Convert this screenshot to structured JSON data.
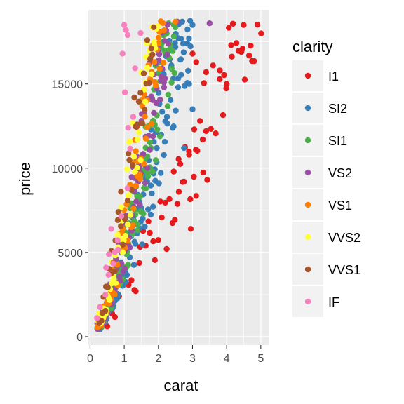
{
  "chart_data": {
    "type": "scatter",
    "title": "",
    "xlabel": "carat",
    "ylabel": "price",
    "xlim": [
      -0.05,
      5.25
    ],
    "ylim": [
      -500,
      19400
    ],
    "x_ticks": [
      0,
      1,
      2,
      3,
      4,
      5
    ],
    "x_tick_labels": [
      "0",
      "1",
      "2",
      "3",
      "4",
      "5"
    ],
    "y_ticks": [
      0,
      5000,
      10000,
      15000
    ],
    "y_tick_labels": [
      "0",
      "5000",
      "10000",
      "15000"
    ],
    "grid": true,
    "legend": {
      "title": "clarity",
      "position": "right",
      "entries": [
        "I1",
        "SI2",
        "SI1",
        "VS2",
        "VS1",
        "VVS2",
        "VVS1",
        "IF"
      ]
    },
    "series": [
      {
        "name": "I1",
        "color": "#e41a1c",
        "ppc": 0.9,
        "dpp": 0.07,
        "x": [
          0.5,
          0.7,
          0.9,
          1.0,
          1.1,
          1.2,
          1.3,
          1.5,
          1.7,
          2.0,
          2.2,
          2.5,
          2.8,
          3.0,
          3.5,
          4.0,
          4.5,
          5.0
        ],
        "y": [
          900,
          1500,
          2300,
          2800,
          3100,
          3500,
          3800,
          4400,
          5000,
          5700,
          6400,
          7600,
          8700,
          9900,
          12200,
          14800,
          18300,
          17900
        ],
        "spread_lo": [
          300,
          400,
          500,
          700,
          900,
          1000,
          1200,
          1400,
          1500,
          1600,
          1800,
          2000,
          2100,
          2300,
          2800,
          3000,
          3000,
          3000
        ],
        "spread_hi": [
          400,
          600,
          800,
          1000,
          1200,
          1400,
          1500,
          1800,
          2200,
          2500,
          2800,
          3000,
          3200,
          3300,
          3500,
          3500,
          3000,
          3000
        ],
        "outliers": [
          {
            "x": 3.0,
            "y": 16800
          },
          {
            "x": 3.11,
            "y": 16300
          },
          {
            "x": 3.4,
            "y": 15700
          },
          {
            "x": 3.6,
            "y": 16100
          },
          {
            "x": 3.8,
            "y": 15800
          },
          {
            "x": 4.0,
            "y": 15000
          },
          {
            "x": 4.13,
            "y": 17300
          },
          {
            "x": 4.5,
            "y": 18500
          },
          {
            "x": 5.01,
            "y": 18000
          },
          {
            "x": 3.22,
            "y": 12800
          },
          {
            "x": 3.05,
            "y": 12300
          },
          {
            "x": 3.4,
            "y": 12200
          },
          {
            "x": 3.3,
            "y": 11700
          },
          {
            "x": 3.1,
            "y": 11100
          },
          {
            "x": 2.9,
            "y": 10800
          },
          {
            "x": 2.95,
            "y": 6400
          },
          {
            "x": 2.75,
            "y": 9200
          },
          {
            "x": 2.6,
            "y": 8600
          },
          {
            "x": 2.45,
            "y": 9800
          }
        ]
      },
      {
        "name": "SI2",
        "color": "#377eb8",
        "ppc": 2.0,
        "dpp": 0.04,
        "x": [
          0.2,
          0.3,
          0.4,
          0.5,
          0.7,
          0.9,
          1.0,
          1.2,
          1.5,
          1.8,
          2.0,
          2.3,
          2.6,
          3.0
        ],
        "y": [
          450,
          600,
          900,
          1300,
          2200,
          3200,
          3900,
          5000,
          7000,
          9500,
          11500,
          14000,
          16500,
          18200
        ],
        "spread_lo": [
          150,
          200,
          250,
          350,
          500,
          700,
          900,
          1300,
          1800,
          2200,
          2500,
          2800,
          3000,
          3000
        ],
        "spread_hi": [
          300,
          400,
          500,
          700,
          1000,
          1200,
          1500,
          2000,
          2600,
          3000,
          3300,
          3500,
          3000,
          2000
        ],
        "outliers": [
          {
            "x": 2.7,
            "y": 18700
          },
          {
            "x": 3.0,
            "y": 18500
          },
          {
            "x": 2.9,
            "y": 15000
          },
          {
            "x": 3.0,
            "y": 13500
          },
          {
            "x": 2.85,
            "y": 17400
          },
          {
            "x": 2.75,
            "y": 11200
          }
        ]
      },
      {
        "name": "SI1",
        "color": "#4daf4a",
        "ppc": 2.2,
        "dpp": 0.04,
        "x": [
          0.2,
          0.3,
          0.4,
          0.5,
          0.7,
          0.9,
          1.0,
          1.2,
          1.5,
          1.8,
          2.0,
          2.3,
          2.5
        ],
        "y": [
          500,
          700,
          1000,
          1500,
          2600,
          3800,
          4700,
          6200,
          8800,
          11800,
          14000,
          16800,
          18200
        ],
        "spread_lo": [
          150,
          200,
          300,
          400,
          600,
          900,
          1200,
          1500,
          2000,
          2500,
          2800,
          3000,
          2500
        ],
        "spread_hi": [
          300,
          400,
          600,
          800,
          1100,
          1500,
          1800,
          2300,
          2800,
          3000,
          3000,
          2000,
          500
        ],
        "outliers": [
          {
            "x": 2.5,
            "y": 18600
          },
          {
            "x": 2.3,
            "y": 18600
          }
        ]
      },
      {
        "name": "VS2",
        "color": "#984ea3",
        "ppc": 1.8,
        "dpp": 0.04,
        "x": [
          0.2,
          0.3,
          0.4,
          0.5,
          0.7,
          0.9,
          1.0,
          1.2,
          1.5,
          1.8,
          2.0,
          2.3
        ],
        "y": [
          550,
          750,
          1100,
          1700,
          2900,
          4300,
          5300,
          7200,
          10200,
          13800,
          16200,
          18300
        ],
        "spread_lo": [
          150,
          250,
          300,
          450,
          700,
          1000,
          1300,
          1700,
          2200,
          2600,
          2800,
          2500
        ],
        "spread_hi": [
          300,
          450,
          700,
          900,
          1300,
          1800,
          2200,
          2700,
          3000,
          3000,
          2000,
          300
        ],
        "outliers": [
          {
            "x": 3.5,
            "y": 18600
          },
          {
            "x": 2.55,
            "y": 18700
          }
        ]
      },
      {
        "name": "VS1",
        "color": "#ff7f00",
        "ppc": 1.5,
        "dpp": 0.04,
        "x": [
          0.2,
          0.3,
          0.4,
          0.5,
          0.7,
          0.9,
          1.0,
          1.2,
          1.5,
          1.8,
          2.0,
          2.2
        ],
        "y": [
          600,
          800,
          1200,
          1800,
          3100,
          4700,
          5800,
          7900,
          11200,
          15000,
          17300,
          18500
        ],
        "spread_lo": [
          150,
          250,
          350,
          500,
          800,
          1100,
          1400,
          1800,
          2300,
          2600,
          2600,
          2000
        ],
        "spread_hi": [
          300,
          500,
          700,
          1000,
          1400,
          1900,
          2300,
          2800,
          3000,
          2500,
          1500,
          200
        ],
        "outliers": [
          {
            "x": 2.5,
            "y": 18700
          }
        ]
      },
      {
        "name": "VVS2",
        "color": "#ffff33",
        "ppc": 1.3,
        "dpp": 0.04,
        "x": [
          0.2,
          0.3,
          0.4,
          0.5,
          0.7,
          0.9,
          1.0,
          1.2,
          1.5,
          1.8,
          2.0
        ],
        "y": [
          650,
          900,
          1400,
          2100,
          3600,
          5500,
          6800,
          9200,
          12900,
          16800,
          18300
        ],
        "spread_lo": [
          150,
          250,
          350,
          550,
          900,
          1300,
          1600,
          2000,
          2500,
          2800,
          2500
        ],
        "spread_hi": [
          350,
          600,
          900,
          1200,
          1700,
          2200,
          2600,
          3000,
          3000,
          1800,
          300
        ],
        "outliers": []
      },
      {
        "name": "VVS1",
        "color": "#a65628",
        "ppc": 1.0,
        "dpp": 0.04,
        "x": [
          0.2,
          0.3,
          0.4,
          0.5,
          0.7,
          0.9,
          1.0,
          1.2,
          1.5,
          1.7,
          1.9
        ],
        "y": [
          700,
          1000,
          1500,
          2300,
          4000,
          6200,
          7600,
          10300,
          14300,
          17000,
          18400
        ],
        "spread_lo": [
          150,
          250,
          400,
          600,
          1000,
          1400,
          1700,
          2100,
          2600,
          2800,
          2500
        ],
        "spread_hi": [
          350,
          600,
          900,
          1300,
          1800,
          2400,
          2800,
          3000,
          2500,
          1500,
          300
        ],
        "outliers": []
      },
      {
        "name": "IF",
        "color": "#f781bf",
        "ppc": 0.5,
        "dpp": 0.04,
        "x": [
          0.2,
          0.3,
          0.4,
          0.5,
          0.6,
          0.7,
          0.9,
          1.0,
          1.2,
          1.5
        ],
        "y": [
          800,
          1200,
          1900,
          2800,
          3800,
          4800,
          7200,
          8800,
          12000,
          16500
        ],
        "spread_lo": [
          200,
          300,
          500,
          700,
          900,
          1100,
          1500,
          1800,
          2200,
          2600
        ],
        "spread_hi": [
          400,
          800,
          1200,
          1600,
          1900,
          2200,
          2700,
          3000,
          3000,
          2000
        ],
        "outliers": [
          {
            "x": 1.0,
            "y": 18500
          },
          {
            "x": 1.05,
            "y": 18200
          },
          {
            "x": 1.1,
            "y": 17900
          },
          {
            "x": 0.62,
            "y": 6400
          },
          {
            "x": 0.55,
            "y": 4900
          },
          {
            "x": 0.95,
            "y": 16800
          },
          {
            "x": 1.02,
            "y": 14500
          }
        ]
      }
    ]
  }
}
